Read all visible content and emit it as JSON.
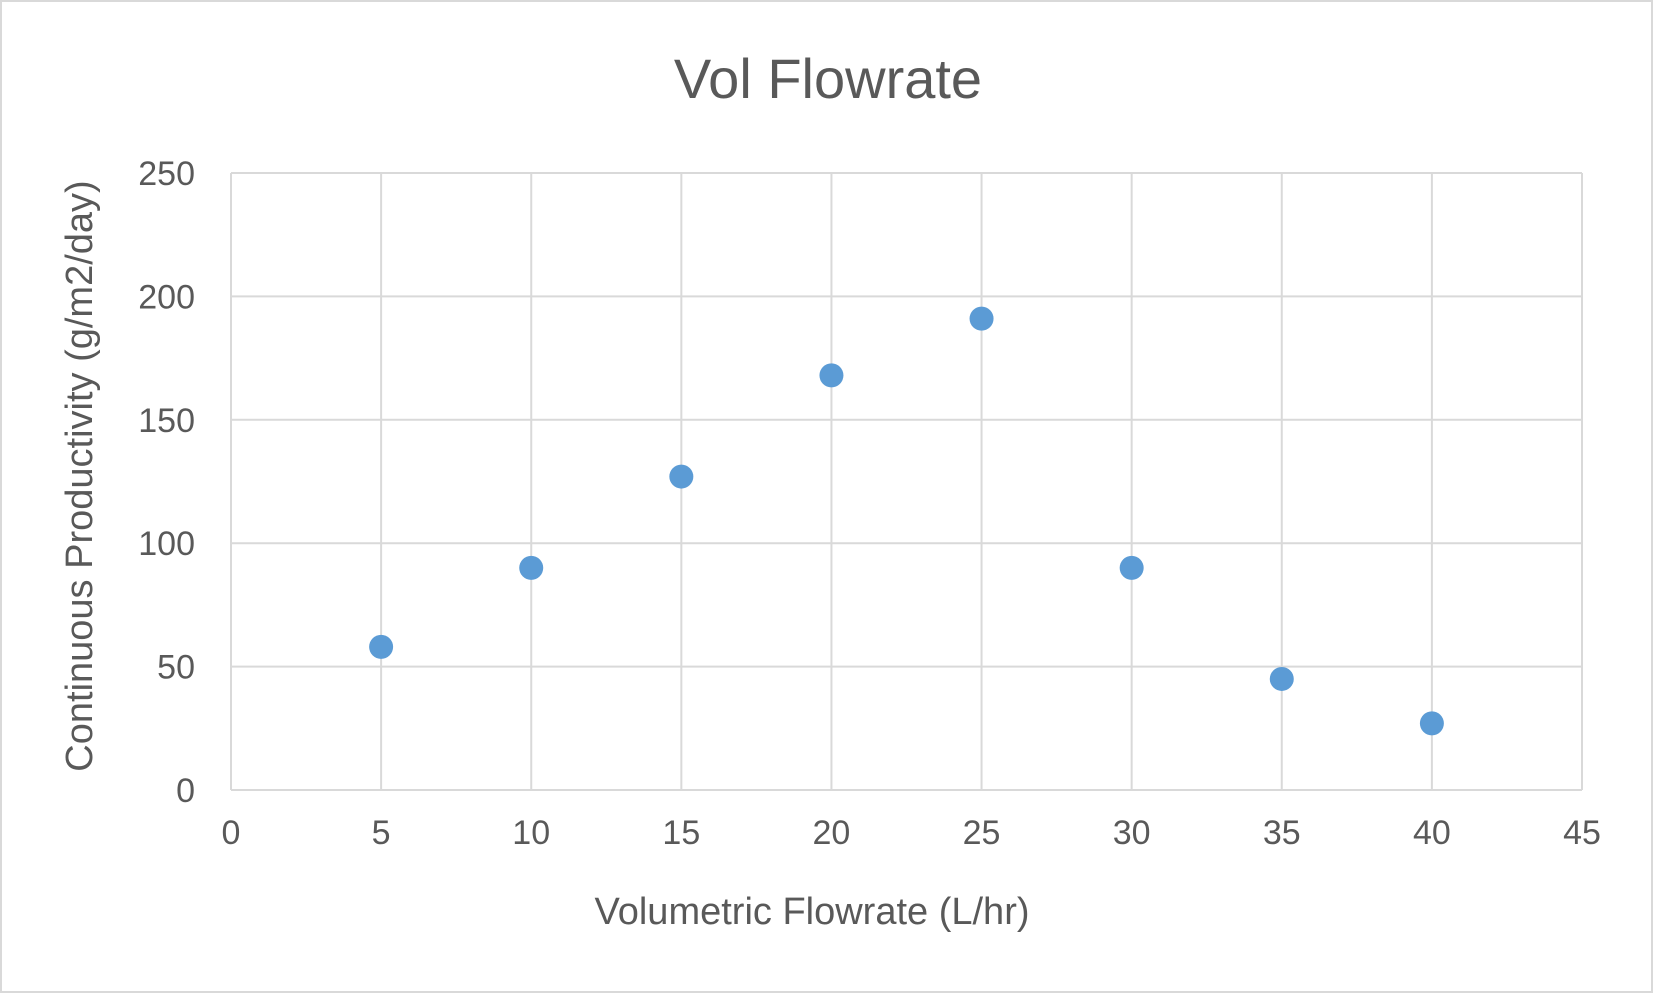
{
  "chart_data": {
    "type": "scatter",
    "title": "Vol Flowrate",
    "xlabel": "Volumetric Flowrate (L/hr)",
    "ylabel": "Continuous Productivity (g/m2/day)",
    "xlim": [
      0,
      45
    ],
    "ylim": [
      0,
      250
    ],
    "xticks": [
      0,
      5,
      10,
      15,
      20,
      25,
      30,
      35,
      40,
      45
    ],
    "yticks": [
      0,
      50,
      100,
      150,
      200,
      250
    ],
    "grid": true,
    "legend": "none",
    "marker_color": "#5b9bd5",
    "series": [
      {
        "x": [
          5,
          10,
          15,
          20,
          25,
          30,
          35,
          40
        ],
        "y": [
          58,
          90,
          127,
          168,
          191,
          90,
          45,
          27
        ]
      }
    ]
  }
}
